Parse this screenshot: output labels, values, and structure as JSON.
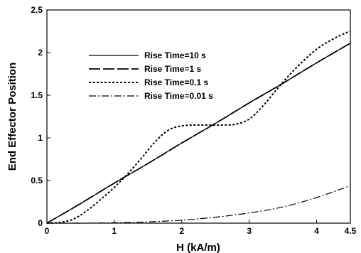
{
  "chart_data": {
    "type": "line",
    "title": "",
    "xlabel": "H (kA/m)",
    "ylabel": "End Effector Position",
    "xlim": [
      0,
      4.5
    ],
    "ylim": [
      0,
      2.5
    ],
    "x_ticks": [
      "0",
      "1",
      "2",
      "3",
      "4",
      "4.5"
    ],
    "y_ticks": [
      "0",
      "0.5",
      "1",
      "1.5",
      "2",
      "2.5"
    ],
    "grid": false,
    "legend_position": "upper-left",
    "series": [
      {
        "name": "Rise Time=10 s",
        "style": "solid",
        "points": [
          [
            0,
            0
          ],
          [
            0.5,
            0.23
          ],
          [
            1,
            0.47
          ],
          [
            1.5,
            0.7
          ],
          [
            2,
            0.94
          ],
          [
            2.5,
            1.17
          ],
          [
            3,
            1.41
          ],
          [
            3.5,
            1.64
          ],
          [
            4,
            1.88
          ],
          [
            4.5,
            2.11
          ]
        ]
      },
      {
        "name": "Rise Time=1 s",
        "style": "long-dash",
        "points": [
          [
            0,
            0
          ],
          [
            0.5,
            0.23
          ],
          [
            1,
            0.47
          ],
          [
            1.5,
            0.7
          ],
          [
            2,
            0.94
          ],
          [
            2.5,
            1.17
          ],
          [
            3,
            1.41
          ],
          [
            3.5,
            1.64
          ],
          [
            4,
            1.88
          ],
          [
            4.5,
            2.11
          ]
        ]
      },
      {
        "name": "Rise Time=0.1 s",
        "style": "dotted",
        "points": [
          [
            0,
            0
          ],
          [
            0.2,
            0.01
          ],
          [
            0.4,
            0.05
          ],
          [
            0.6,
            0.15
          ],
          [
            0.8,
            0.28
          ],
          [
            1,
            0.42
          ],
          [
            1.2,
            0.58
          ],
          [
            1.4,
            0.76
          ],
          [
            1.6,
            0.95
          ],
          [
            1.8,
            1.09
          ],
          [
            2,
            1.14
          ],
          [
            2.2,
            1.15
          ],
          [
            2.4,
            1.15
          ],
          [
            2.6,
            1.15
          ],
          [
            2.8,
            1.16
          ],
          [
            3,
            1.22
          ],
          [
            3.2,
            1.37
          ],
          [
            3.4,
            1.56
          ],
          [
            3.6,
            1.74
          ],
          [
            3.8,
            1.9
          ],
          [
            4,
            2.04
          ],
          [
            4.2,
            2.14
          ],
          [
            4.4,
            2.22
          ],
          [
            4.5,
            2.25
          ]
        ]
      },
      {
        "name": "Rise Time=0.01 s",
        "style": "dash-dot",
        "points": [
          [
            0,
            0
          ],
          [
            0.5,
            0.0
          ],
          [
            1,
            0.005
          ],
          [
            1.5,
            0.015
          ],
          [
            2,
            0.035
          ],
          [
            2.5,
            0.07
          ],
          [
            3,
            0.12
          ],
          [
            3.5,
            0.19
          ],
          [
            4,
            0.3
          ],
          [
            4.5,
            0.44
          ]
        ]
      }
    ]
  }
}
